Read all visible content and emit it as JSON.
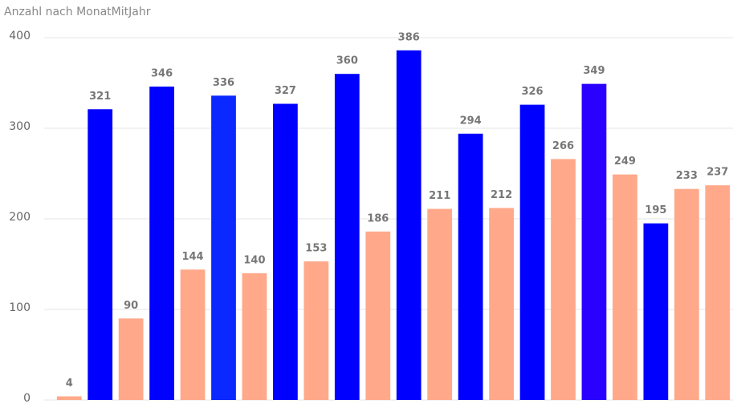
{
  "chart_data": {
    "type": "bar",
    "title": "Anzahl nach MonatMitJahr",
    "values": [
      4,
      321,
      90,
      346,
      144,
      336,
      140,
      327,
      153,
      360,
      186,
      386,
      211,
      294,
      212,
      326,
      266,
      349,
      249,
      195,
      233,
      237
    ],
    "colors": [
      "#ffa98a",
      "#0000ff",
      "#ffa98a",
      "#0000ff",
      "#ffa98a",
      "#0a28ff",
      "#ffa98a",
      "#0000ff",
      "#ffa98a",
      "#0000ff",
      "#ffa98a",
      "#0000ff",
      "#ffa98a",
      "#0000ff",
      "#ffa98a",
      "#0000ff",
      "#ffa98a",
      "#2a00ff",
      "#ffa98a",
      "#0000ff",
      "#ffa98a",
      "#ffa98a"
    ],
    "ylim": [
      0,
      400
    ],
    "yticks": [
      0,
      100,
      200,
      300,
      400
    ],
    "grid": true
  }
}
